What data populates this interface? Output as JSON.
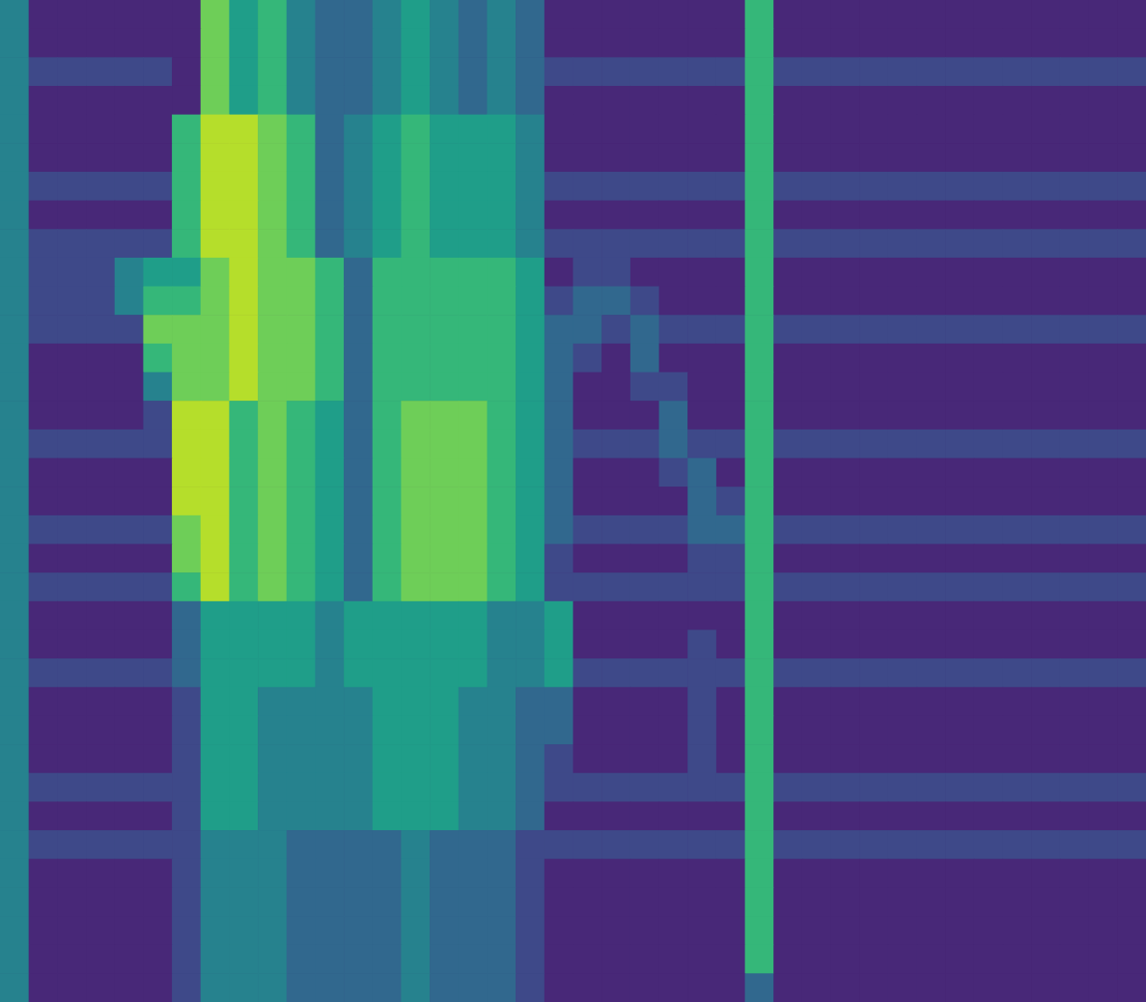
{
  "chart_data": {
    "type": "heatmap",
    "color": "viridis",
    "zlim": [
      0,
      9
    ],
    "tick_labels": false,
    "z": [
      [
        4,
        1,
        1,
        1,
        1,
        1,
        1,
        7,
        5,
        6,
        4,
        3,
        3,
        4,
        5,
        4,
        3,
        4,
        3,
        1,
        1,
        1,
        1,
        1,
        1,
        1,
        6,
        1,
        1,
        1,
        1,
        1,
        1,
        1,
        1,
        1,
        1,
        1,
        1,
        1
      ],
      [
        4,
        1,
        1,
        1,
        1,
        1,
        1,
        7,
        5,
        6,
        4,
        3,
        3,
        4,
        5,
        4,
        3,
        4,
        3,
        1,
        1,
        1,
        1,
        1,
        1,
        1,
        6,
        1,
        1,
        1,
        1,
        1,
        1,
        1,
        1,
        1,
        1,
        1,
        1,
        1
      ],
      [
        4,
        2,
        2,
        2,
        2,
        2,
        1,
        7,
        5,
        6,
        4,
        3,
        3,
        4,
        5,
        4,
        3,
        4,
        3,
        2,
        2,
        2,
        2,
        2,
        2,
        2,
        6,
        2,
        2,
        2,
        2,
        2,
        2,
        2,
        2,
        2,
        2,
        2,
        2,
        2
      ],
      [
        4,
        1,
        1,
        1,
        1,
        1,
        1,
        7,
        5,
        6,
        4,
        3,
        3,
        4,
        5,
        4,
        3,
        4,
        3,
        1,
        1,
        1,
        1,
        1,
        1,
        1,
        6,
        1,
        1,
        1,
        1,
        1,
        1,
        1,
        1,
        1,
        1,
        1,
        1,
        1
      ],
      [
        4,
        1,
        1,
        1,
        1,
        1,
        6,
        8,
        8,
        7,
        6,
        3,
        4,
        5,
        6,
        5,
        5,
        5,
        4,
        1,
        1,
        1,
        1,
        1,
        1,
        1,
        6,
        1,
        1,
        1,
        1,
        1,
        1,
        1,
        1,
        1,
        1,
        1,
        1,
        1
      ],
      [
        4,
        1,
        1,
        1,
        1,
        1,
        6,
        8,
        8,
        7,
        6,
        3,
        4,
        5,
        6,
        5,
        5,
        5,
        4,
        1,
        1,
        1,
        1,
        1,
        1,
        1,
        6,
        1,
        1,
        1,
        1,
        1,
        1,
        1,
        1,
        1,
        1,
        1,
        1,
        1
      ],
      [
        4,
        2,
        2,
        2,
        2,
        2,
        6,
        8,
        8,
        7,
        6,
        3,
        4,
        5,
        6,
        5,
        5,
        5,
        4,
        2,
        2,
        2,
        2,
        2,
        2,
        2,
        6,
        2,
        2,
        2,
        2,
        2,
        2,
        2,
        2,
        2,
        2,
        2,
        2,
        2
      ],
      [
        4,
        1,
        1,
        1,
        1,
        1,
        6,
        8,
        8,
        7,
        6,
        3,
        4,
        5,
        6,
        5,
        5,
        5,
        4,
        1,
        1,
        1,
        1,
        1,
        1,
        1,
        6,
        1,
        1,
        1,
        1,
        1,
        1,
        1,
        1,
        1,
        1,
        1,
        1,
        1
      ],
      [
        4,
        2,
        2,
        2,
        2,
        2,
        6,
        8,
        8,
        7,
        6,
        3,
        4,
        5,
        6,
        5,
        5,
        5,
        4,
        2,
        2,
        2,
        2,
        2,
        2,
        2,
        6,
        2,
        2,
        2,
        2,
        2,
        2,
        2,
        2,
        2,
        2,
        2,
        2,
        2
      ],
      [
        4,
        2,
        2,
        2,
        4,
        5,
        5,
        7,
        8,
        7,
        7,
        6,
        3,
        6,
        6,
        6,
        6,
        6,
        5,
        1,
        2,
        2,
        1,
        1,
        1,
        1,
        6,
        1,
        1,
        1,
        1,
        1,
        1,
        1,
        1,
        1,
        1,
        1,
        1,
        1
      ],
      [
        4,
        2,
        2,
        2,
        4,
        6,
        6,
        7,
        8,
        7,
        7,
        6,
        3,
        6,
        6,
        6,
        6,
        6,
        5,
        2,
        3,
        3,
        2,
        1,
        1,
        1,
        6,
        1,
        1,
        1,
        1,
        1,
        1,
        1,
        1,
        1,
        1,
        1,
        1,
        1
      ],
      [
        4,
        2,
        2,
        2,
        2,
        7,
        7,
        7,
        8,
        7,
        7,
        6,
        3,
        6,
        6,
        6,
        6,
        6,
        5,
        3,
        3,
        2,
        3,
        2,
        2,
        2,
        6,
        2,
        2,
        2,
        2,
        2,
        2,
        2,
        2,
        2,
        2,
        2,
        2,
        2
      ],
      [
        4,
        1,
        1,
        1,
        1,
        6,
        7,
        7,
        8,
        7,
        7,
        6,
        3,
        6,
        6,
        6,
        6,
        6,
        5,
        3,
        2,
        1,
        3,
        1,
        1,
        1,
        6,
        1,
        1,
        1,
        1,
        1,
        1,
        1,
        1,
        1,
        1,
        1,
        1,
        1
      ],
      [
        4,
        1,
        1,
        1,
        1,
        4,
        7,
        7,
        8,
        7,
        7,
        6,
        3,
        6,
        6,
        6,
        6,
        6,
        5,
        3,
        1,
        1,
        2,
        2,
        1,
        1,
        6,
        1,
        1,
        1,
        1,
        1,
        1,
        1,
        1,
        1,
        1,
        1,
        1,
        1
      ],
      [
        4,
        1,
        1,
        1,
        1,
        2,
        8,
        8,
        6,
        7,
        6,
        5,
        3,
        6,
        7,
        7,
        7,
        6,
        5,
        3,
        1,
        1,
        1,
        3,
        1,
        1,
        6,
        1,
        1,
        1,
        1,
        1,
        1,
        1,
        1,
        1,
        1,
        1,
        1,
        1
      ],
      [
        4,
        2,
        2,
        2,
        2,
        2,
        8,
        8,
        6,
        7,
        6,
        5,
        3,
        6,
        7,
        7,
        7,
        6,
        5,
        3,
        2,
        2,
        2,
        3,
        2,
        2,
        6,
        2,
        2,
        2,
        2,
        2,
        2,
        2,
        2,
        2,
        2,
        2,
        2,
        2
      ],
      [
        4,
        1,
        1,
        1,
        1,
        1,
        8,
        8,
        6,
        7,
        6,
        5,
        3,
        6,
        7,
        7,
        7,
        6,
        5,
        3,
        1,
        1,
        1,
        2,
        3,
        1,
        6,
        1,
        1,
        1,
        1,
        1,
        1,
        1,
        1,
        1,
        1,
        1,
        1,
        1
      ],
      [
        4,
        1,
        1,
        1,
        1,
        1,
        8,
        8,
        6,
        7,
        6,
        5,
        3,
        6,
        7,
        7,
        7,
        6,
        5,
        3,
        1,
        1,
        1,
        1,
        3,
        2,
        6,
        1,
        1,
        1,
        1,
        1,
        1,
        1,
        1,
        1,
        1,
        1,
        1,
        1
      ],
      [
        4,
        2,
        2,
        2,
        2,
        2,
        7,
        8,
        6,
        7,
        6,
        5,
        3,
        6,
        7,
        7,
        7,
        6,
        5,
        3,
        2,
        2,
        2,
        2,
        3,
        3,
        6,
        2,
        2,
        2,
        2,
        2,
        2,
        2,
        2,
        2,
        2,
        2,
        2,
        2
      ],
      [
        4,
        1,
        1,
        1,
        1,
        1,
        7,
        8,
        6,
        7,
        6,
        5,
        3,
        6,
        7,
        7,
        7,
        6,
        5,
        2,
        1,
        1,
        1,
        1,
        2,
        2,
        6,
        1,
        1,
        1,
        1,
        1,
        1,
        1,
        1,
        1,
        1,
        1,
        1,
        1
      ],
      [
        4,
        2,
        2,
        2,
        2,
        2,
        6,
        8,
        6,
        7,
        6,
        5,
        3,
        6,
        7,
        7,
        7,
        6,
        5,
        2,
        2,
        2,
        2,
        2,
        2,
        2,
        6,
        2,
        2,
        2,
        2,
        2,
        2,
        2,
        2,
        2,
        2,
        2,
        2,
        2
      ],
      [
        4,
        1,
        1,
        1,
        1,
        1,
        3,
        5,
        5,
        5,
        5,
        4,
        5,
        5,
        5,
        5,
        5,
        4,
        4,
        5,
        1,
        1,
        1,
        1,
        1,
        1,
        6,
        1,
        1,
        1,
        1,
        1,
        1,
        1,
        1,
        1,
        1,
        1,
        1,
        1
      ],
      [
        4,
        1,
        1,
        1,
        1,
        1,
        3,
        5,
        5,
        5,
        5,
        4,
        5,
        5,
        5,
        5,
        5,
        4,
        4,
        5,
        1,
        1,
        1,
        1,
        2,
        1,
        6,
        1,
        1,
        1,
        1,
        1,
        1,
        1,
        1,
        1,
        1,
        1,
        1,
        1
      ],
      [
        4,
        2,
        2,
        2,
        2,
        2,
        3,
        5,
        5,
        5,
        5,
        4,
        5,
        5,
        5,
        5,
        5,
        4,
        4,
        5,
        2,
        2,
        2,
        2,
        2,
        2,
        6,
        2,
        2,
        2,
        2,
        2,
        2,
        2,
        2,
        2,
        2,
        2,
        2,
        2
      ],
      [
        4,
        1,
        1,
        1,
        1,
        1,
        2,
        5,
        5,
        4,
        4,
        4,
        4,
        5,
        5,
        5,
        4,
        4,
        3,
        3,
        1,
        1,
        1,
        1,
        2,
        1,
        6,
        1,
        1,
        1,
        1,
        1,
        1,
        1,
        1,
        1,
        1,
        1,
        1,
        1
      ],
      [
        4,
        1,
        1,
        1,
        1,
        1,
        2,
        5,
        5,
        4,
        4,
        4,
        4,
        5,
        5,
        5,
        4,
        4,
        3,
        3,
        1,
        1,
        1,
        1,
        2,
        1,
        6,
        1,
        1,
        1,
        1,
        1,
        1,
        1,
        1,
        1,
        1,
        1,
        1,
        1
      ],
      [
        4,
        1,
        1,
        1,
        1,
        1,
        2,
        5,
        5,
        4,
        4,
        4,
        4,
        5,
        5,
        5,
        4,
        4,
        3,
        2,
        1,
        1,
        1,
        1,
        2,
        1,
        6,
        1,
        1,
        1,
        1,
        1,
        1,
        1,
        1,
        1,
        1,
        1,
        1,
        1
      ],
      [
        4,
        2,
        2,
        2,
        2,
        2,
        2,
        5,
        5,
        4,
        4,
        4,
        4,
        5,
        5,
        5,
        4,
        4,
        3,
        2,
        2,
        2,
        2,
        2,
        2,
        2,
        6,
        2,
        2,
        2,
        2,
        2,
        2,
        2,
        2,
        2,
        2,
        2,
        2,
        2
      ],
      [
        4,
        1,
        1,
        1,
        1,
        1,
        2,
        5,
        5,
        4,
        4,
        4,
        4,
        5,
        5,
        5,
        4,
        4,
        3,
        1,
        1,
        1,
        1,
        1,
        1,
        1,
        6,
        1,
        1,
        1,
        1,
        1,
        1,
        1,
        1,
        1,
        1,
        1,
        1,
        1
      ],
      [
        4,
        2,
        2,
        2,
        2,
        2,
        2,
        4,
        4,
        4,
        3,
        3,
        3,
        3,
        4,
        3,
        3,
        3,
        2,
        2,
        2,
        2,
        2,
        2,
        2,
        2,
        6,
        2,
        2,
        2,
        2,
        2,
        2,
        2,
        2,
        2,
        2,
        2,
        2,
        2
      ],
      [
        4,
        1,
        1,
        1,
        1,
        1,
        2,
        4,
        4,
        4,
        3,
        3,
        3,
        3,
        4,
        3,
        3,
        3,
        2,
        1,
        1,
        1,
        1,
        1,
        1,
        1,
        6,
        1,
        1,
        1,
        1,
        1,
        1,
        1,
        1,
        1,
        1,
        1,
        1,
        1
      ],
      [
        4,
        1,
        1,
        1,
        1,
        1,
        2,
        4,
        4,
        4,
        3,
        3,
        3,
        3,
        4,
        3,
        3,
        3,
        2,
        1,
        1,
        1,
        1,
        1,
        1,
        1,
        6,
        1,
        1,
        1,
        1,
        1,
        1,
        1,
        1,
        1,
        1,
        1,
        1,
        1
      ],
      [
        4,
        1,
        1,
        1,
        1,
        1,
        2,
        4,
        4,
        4,
        3,
        3,
        3,
        3,
        4,
        3,
        3,
        3,
        2,
        1,
        1,
        1,
        1,
        1,
        1,
        1,
        6,
        1,
        1,
        1,
        1,
        1,
        1,
        1,
        1,
        1,
        1,
        1,
        1,
        1
      ],
      [
        4,
        1,
        1,
        1,
        1,
        1,
        2,
        4,
        4,
        4,
        3,
        3,
        3,
        3,
        4,
        3,
        3,
        3,
        2,
        1,
        1,
        1,
        1,
        1,
        1,
        1,
        6,
        1,
        1,
        1,
        1,
        1,
        1,
        1,
        1,
        1,
        1,
        1,
        1,
        1
      ],
      [
        4,
        1,
        1,
        1,
        1,
        1,
        2,
        4,
        4,
        4,
        3,
        3,
        3,
        3,
        4,
        3,
        3,
        3,
        2,
        1,
        1,
        1,
        1,
        1,
        1,
        1,
        3,
        1,
        1,
        1,
        1,
        1,
        1,
        1,
        1,
        1,
        1,
        1,
        1,
        1
      ]
    ]
  }
}
